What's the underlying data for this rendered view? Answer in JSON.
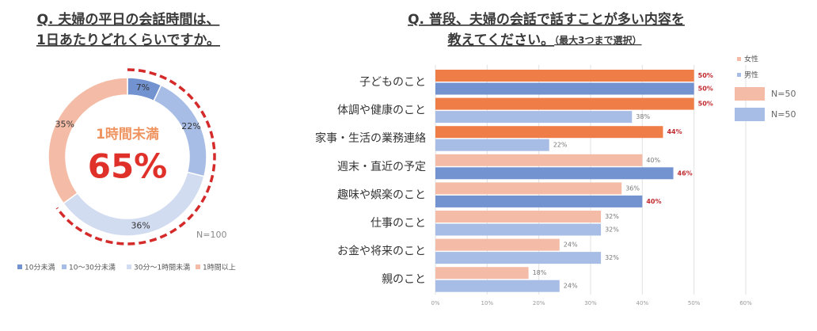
{
  "chart_data": [
    {
      "type": "donut",
      "title": [
        "Q. 夫婦の平日の会話時間は、",
        "1日あたりどれくらいですか。"
      ],
      "categories": [
        "10分未満",
        "10〜30分未満",
        "30分〜1時間未満",
        "1時間以上"
      ],
      "values": [
        7,
        22,
        36,
        35
      ],
      "value_labels": [
        "7%",
        "22%",
        "36%",
        "35%"
      ],
      "colors": [
        "#7392d0",
        "#a8bde6",
        "#d2dcf1",
        "#f4bca6"
      ],
      "center_label": "1時間未満",
      "center_value": 65,
      "center_value_label": "65%",
      "note": "N=100"
    },
    {
      "type": "hbar",
      "title": [
        "Q. 普段、夫婦の会話で話すことが多い内容を",
        "教えてください。"
      ],
      "subtitle": "（最大3つまで選択）",
      "categories": [
        "子どものこと",
        "体調や健康のこと",
        "家事・生活の業務連絡",
        "週末・直近の予定",
        "趣味や娯楽のこと",
        "仕事のこと",
        "お金や将来のこと",
        "親のこと"
      ],
      "series": [
        {
          "name": "女性",
          "color": "#f4bca6",
          "highlight_color": "#ee7d48",
          "legend_note": "N=50",
          "values": [
            50,
            50,
            44,
            40,
            36,
            32,
            24,
            18
          ],
          "value_labels": [
            "50%",
            "50%",
            "44%",
            "40%",
            "36%",
            "32%",
            "24%",
            "18%"
          ],
          "highlight": [
            true,
            true,
            true,
            false,
            false,
            false,
            false,
            false
          ]
        },
        {
          "name": "男性",
          "color": "#a8bde6",
          "highlight_color": "#7392d0",
          "legend_note": "N=50",
          "values": [
            50,
            38,
            22,
            46,
            40,
            32,
            32,
            24
          ],
          "value_labels": [
            "50%",
            "38%",
            "22%",
            "46%",
            "40%",
            "32%",
            "32%",
            "24%"
          ],
          "highlight": [
            true,
            false,
            false,
            true,
            true,
            false,
            false,
            false
          ]
        }
      ],
      "highlight_label_color": "#c0282d",
      "xlim": [
        0,
        60
      ],
      "xticks": [
        {
          "value": 0,
          "label": "0%"
        },
        {
          "value": 10,
          "label": "10%"
        },
        {
          "value": 20,
          "label": "20%"
        },
        {
          "value": 30,
          "label": "30%"
        },
        {
          "value": 40,
          "label": "40%"
        },
        {
          "value": 50,
          "label": "50%"
        },
        {
          "value": 60,
          "label": "60%"
        }
      ],
      "grid": true
    }
  ]
}
